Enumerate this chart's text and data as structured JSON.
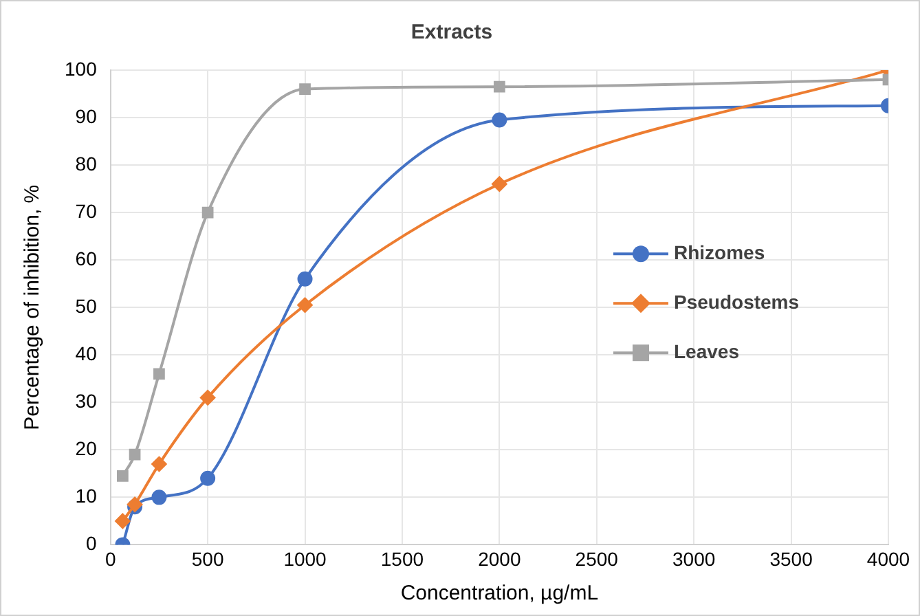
{
  "chart_data": {
    "type": "line",
    "title": "Extracts",
    "xlabel": "Concentration, µg/mL",
    "ylabel": "Percentage of inhibition, %",
    "x": [
      62.5,
      125,
      250,
      500,
      1000,
      2000,
      4000
    ],
    "series": [
      {
        "name": "Rhizomes",
        "color": "#4472c4",
        "marker": "circle",
        "values": [
          0,
          8,
          10,
          14,
          56,
          89.5,
          92.5
        ]
      },
      {
        "name": "Pseudostems",
        "color": "#ed7d31",
        "marker": "diamond",
        "values": [
          5,
          8.5,
          17,
          31,
          50.5,
          76,
          100
        ]
      },
      {
        "name": "Leaves",
        "color": "#a5a5a5",
        "marker": "square",
        "values": [
          14.5,
          19,
          36,
          70,
          96,
          96.5,
          98
        ]
      }
    ],
    "xlim": [
      0,
      4000
    ],
    "xticks": [
      0,
      500,
      1000,
      1500,
      2000,
      2500,
      3000,
      3500,
      4000
    ],
    "ylim": [
      0,
      100
    ],
    "yticks": [
      0,
      10,
      20,
      30,
      40,
      50,
      60,
      70,
      80,
      90,
      100
    ],
    "grid": true,
    "legend": "right"
  }
}
